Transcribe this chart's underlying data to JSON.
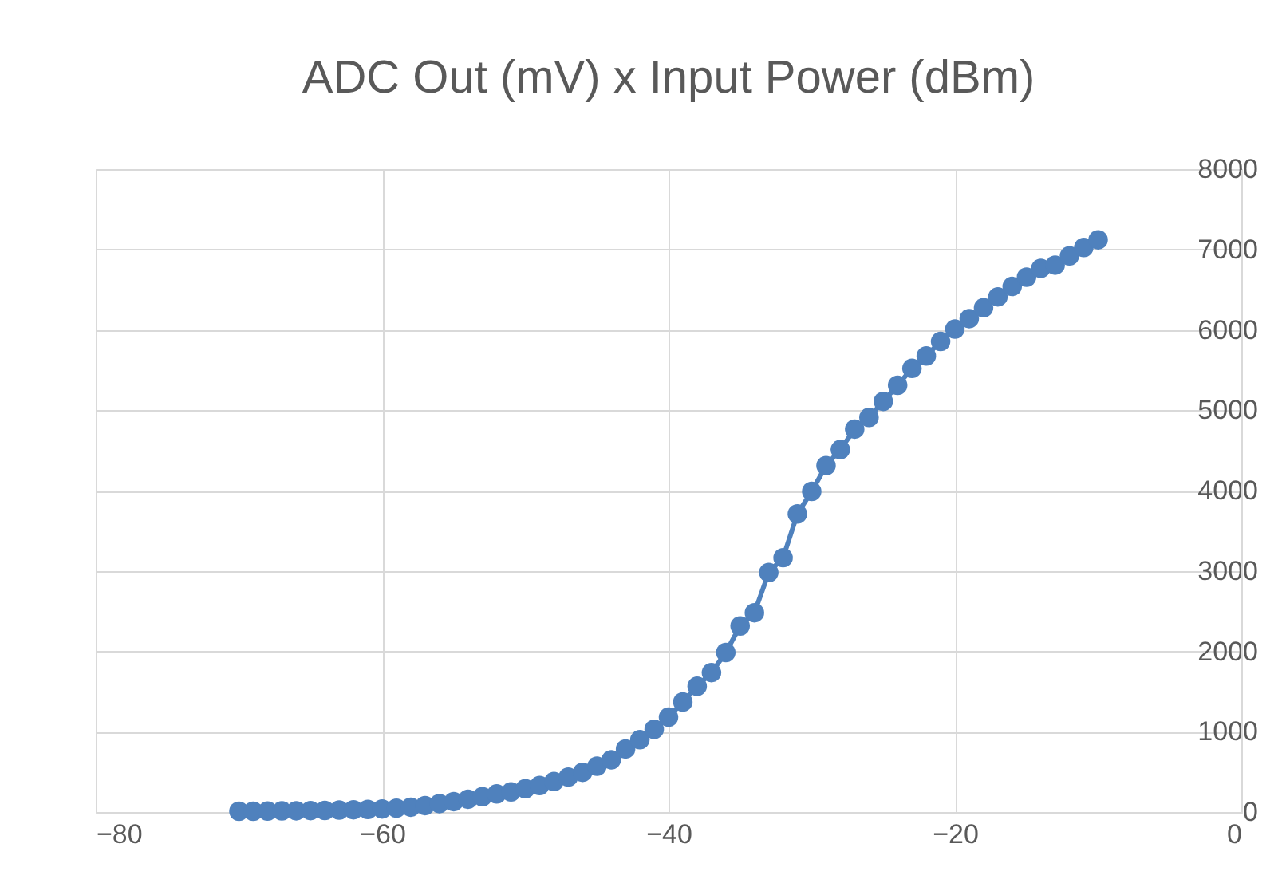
{
  "chart_data": {
    "type": "line",
    "title": "ADC Out (mV) x Input Power (dBm)",
    "x": [
      -70,
      -69,
      -68,
      -67,
      -66,
      -65,
      -64,
      -63,
      -62,
      -61,
      -60,
      -59,
      -58,
      -57,
      -56,
      -55,
      -54,
      -53,
      -52,
      -51,
      -50,
      -49,
      -48,
      -47,
      -46,
      -45,
      -44,
      -43,
      -42,
      -41,
      -40,
      -39,
      -38,
      -37,
      -36,
      -35,
      -34,
      -33,
      -32,
      -31,
      -30,
      -29,
      -28,
      -27,
      -26,
      -25,
      -24,
      -23,
      -22,
      -21,
      -20,
      -19,
      -18,
      -17,
      -16,
      -15,
      -14,
      -13,
      -12,
      -11,
      -10
    ],
    "series": [
      {
        "color": "#4f81bd",
        "values": [
          10,
          10,
          12,
          14,
          16,
          18,
          20,
          24,
          28,
          32,
          38,
          48,
          60,
          80,
          105,
          130,
          160,
          190,
          225,
          250,
          290,
          330,
          380,
          435,
          495,
          570,
          650,
          785,
          900,
          1030,
          1180,
          1370,
          1565,
          1735,
          1985,
          2315,
          2480,
          2980,
          3165,
          3710,
          3990,
          4310,
          4510,
          4765,
          4910,
          5110,
          5310,
          5520,
          5675,
          5855,
          6010,
          6140,
          6275,
          6410,
          6540,
          6655,
          6765,
          6805,
          6920,
          7025,
          7120
        ]
      }
    ],
    "xlim": [
      -80,
      0
    ],
    "xticks": [
      -80,
      -60,
      -40,
      -20,
      0
    ],
    "ylim": [
      0,
      8000
    ],
    "yticks": [
      0,
      1000,
      2000,
      3000,
      4000,
      5000,
      6000,
      7000,
      8000
    ],
    "grid": true,
    "marker": "circle",
    "line_style": "solid"
  }
}
